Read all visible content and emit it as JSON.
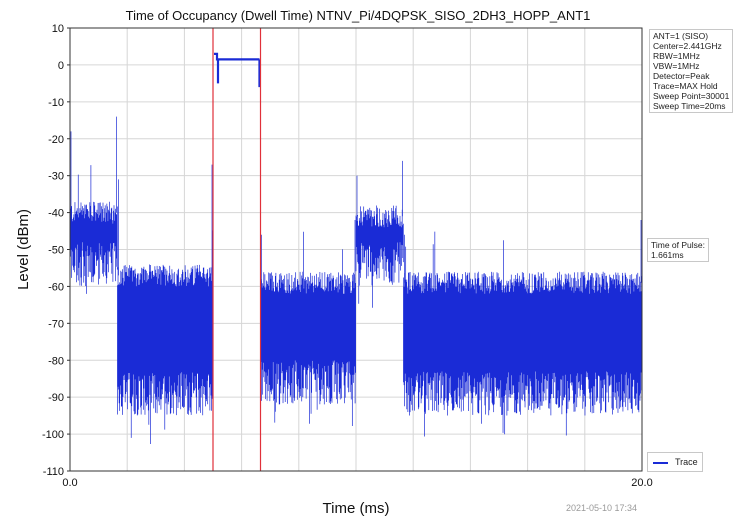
{
  "chart_data": {
    "type": "line",
    "title": "Time of Occupancy (Dwell Time) NTNV_Pi/4DQPSK_SISO_2DH3_HOPP_ANT1",
    "xlabel": "Time (ms)",
    "ylabel": "Level (dBm)",
    "xlim": [
      0.0,
      20.0
    ],
    "ylim": [
      -110,
      10
    ],
    "x_ticks": [
      "0.0",
      "20.0"
    ],
    "y_ticks": [
      10,
      0,
      -10,
      -20,
      -30,
      -40,
      -50,
      -60,
      -70,
      -80,
      -90,
      -100,
      -110
    ],
    "grid": true,
    "series": [
      {
        "name": "Trace",
        "color": "#1a2bd6",
        "segments": [
          {
            "x_start": 0.0,
            "x_end": 1.66,
            "level_top": -40,
            "level_bottom": -60,
            "peak": -18
          },
          {
            "x_start": 1.66,
            "x_end": 5.0,
            "level_top": -57,
            "level_bottom": -95,
            "peak": -31
          },
          {
            "x_start": 5.0,
            "x_end": 6.66,
            "level_top": 1.5,
            "level_bottom": 1.0,
            "peak": 3
          },
          {
            "x_start": 6.66,
            "x_end": 10.0,
            "level_top": -59,
            "level_bottom": -92,
            "peak": -46
          },
          {
            "x_start": 10.0,
            "x_end": 11.66,
            "level_top": -41,
            "level_bottom": -60,
            "peak": -30
          },
          {
            "x_start": 11.66,
            "x_end": 20.0,
            "level_top": -59,
            "level_bottom": -95,
            "peak": -46
          }
        ]
      }
    ],
    "markers": [
      {
        "name": "start",
        "x": 5.0,
        "color": "#e0303a"
      },
      {
        "name": "end",
        "x": 6.661,
        "color": "#e0303a"
      }
    ],
    "legend_position": "bottom-right"
  },
  "settings_box": {
    "lines": [
      "ANT=1 (SISO)",
      "Center=2.441GHz",
      "RBW=1MHz",
      "VBW=1MHz",
      "Detector=Peak",
      "Trace=MAX Hold",
      "Sweep Point=30001",
      "Sweep Time=20ms"
    ]
  },
  "pulse_box": {
    "label": "Time of Pulse:",
    "value": "1.661ms"
  },
  "legend": {
    "label": "Trace"
  },
  "timestamp": "2021-05-10 17:34"
}
